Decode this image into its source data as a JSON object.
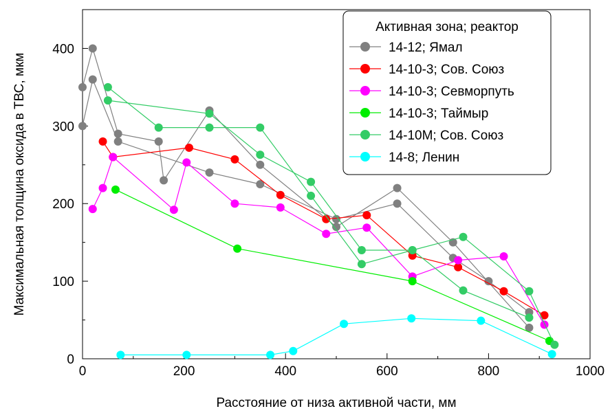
{
  "chart_data": {
    "type": "line",
    "xlabel": "Расстояние от низа активной части, мм",
    "ylabel": "Максимальная толщина оксида в ТВС, мкм",
    "xlim": [
      0,
      1000
    ],
    "ylim": [
      0,
      450
    ],
    "x_ticks": [
      0,
      200,
      400,
      600,
      800,
      1000
    ],
    "y_ticks": [
      0,
      100,
      200,
      300,
      400
    ],
    "grid": false,
    "legend": {
      "title": "Активная зона; реактор",
      "placement": "top-right"
    },
    "series": [
      {
        "name": "14-12; Ямал",
        "color": "#808080",
        "points": [
          [
            0,
            350
          ],
          [
            20,
            400
          ],
          [
            70,
            290
          ],
          [
            150,
            280
          ],
          [
            160,
            230
          ],
          [
            250,
            320
          ],
          [
            350,
            250
          ],
          [
            500,
            170
          ],
          [
            620,
            220
          ],
          [
            730,
            150
          ],
          [
            880,
            40
          ]
        ]
      },
      {
        "name": "14-12; Ямал",
        "color": "#808080",
        "legend": false,
        "points": [
          [
            0,
            300
          ],
          [
            20,
            360
          ],
          [
            70,
            280
          ],
          [
            250,
            240
          ],
          [
            350,
            225
          ],
          [
            500,
            180
          ],
          [
            620,
            200
          ],
          [
            730,
            130
          ],
          [
            800,
            100
          ],
          [
            880,
            60
          ]
        ]
      },
      {
        "name": "14-10-3; Сов. Союз",
        "color": "#ff0000",
        "points": [
          [
            40,
            280
          ],
          [
            60,
            260
          ],
          [
            210,
            272
          ],
          [
            300,
            257
          ],
          [
            390,
            211
          ],
          [
            480,
            180
          ],
          [
            560,
            185
          ],
          [
            650,
            133
          ],
          [
            740,
            118
          ],
          [
            830,
            87
          ],
          [
            910,
            56
          ]
        ]
      },
      {
        "name": "14-10-3; Севморпуть",
        "color": "#ff00ff",
        "points": [
          [
            20,
            193
          ],
          [
            40,
            220
          ],
          [
            60,
            260
          ],
          [
            180,
            192
          ],
          [
            205,
            253
          ],
          [
            300,
            200
          ],
          [
            390,
            195
          ],
          [
            480,
            161
          ],
          [
            560,
            169
          ],
          [
            650,
            106
          ],
          [
            740,
            127
          ],
          [
            830,
            132
          ],
          [
            910,
            44
          ]
        ]
      },
      {
        "name": "14-10-3; Таймыр",
        "color": "#00ee00",
        "points": [
          [
            65,
            218
          ],
          [
            305,
            142
          ],
          [
            650,
            100
          ],
          [
            920,
            23
          ]
        ]
      },
      {
        "name": "14-10М; Сов. Союз",
        "color": "#33cc66",
        "points": [
          [
            50,
            350
          ],
          [
            150,
            298
          ],
          [
            250,
            298
          ],
          [
            350,
            298
          ],
          [
            450,
            210
          ],
          [
            550,
            122
          ],
          [
            650,
            140
          ],
          [
            750,
            157
          ],
          [
            880,
            87
          ],
          [
            930,
            18
          ]
        ]
      },
      {
        "name": "14-10М; Сов. Союз",
        "color": "#33cc66",
        "legend": false,
        "points": [
          [
            50,
            333
          ],
          [
            250,
            316
          ],
          [
            350,
            263
          ],
          [
            450,
            228
          ],
          [
            550,
            140
          ],
          [
            650,
            140
          ],
          [
            750,
            88
          ],
          [
            880,
            53
          ]
        ]
      },
      {
        "name": "14-8; Ленин",
        "color": "#00ffff",
        "points": [
          [
            75,
            5
          ],
          [
            205,
            5
          ],
          [
            370,
            5
          ],
          [
            415,
            10
          ],
          [
            515,
            45
          ],
          [
            648,
            52
          ],
          [
            785,
            49
          ],
          [
            925,
            6
          ]
        ]
      }
    ]
  }
}
